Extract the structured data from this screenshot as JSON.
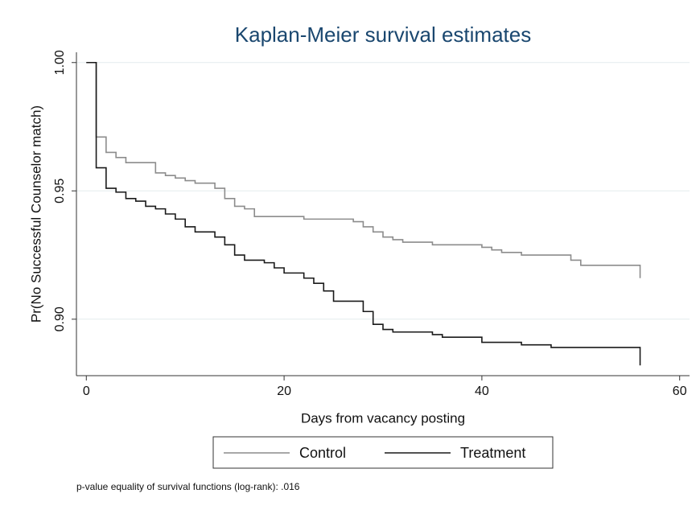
{
  "chart_data": {
    "type": "step",
    "title": "Kaplan-Meier survival estimates",
    "xlabel": "Days from vacancy posting",
    "ylabel": "Pr(No Successful Counselor match)",
    "note": "p-value equality of survival functions (log-rank): .016",
    "xlim": [
      -1,
      61
    ],
    "ylim": [
      0.878,
      1.004
    ],
    "xticks": [
      0,
      20,
      40,
      60
    ],
    "yticks": [
      {
        "value": 0.9,
        "label": "0.90"
      },
      {
        "value": 0.95,
        "label": "0.95"
      },
      {
        "value": 1,
        "label": "1.00"
      }
    ],
    "grid": true,
    "series": [
      {
        "name": "Control",
        "color": "#8c8c8c",
        "x": [
          0,
          1,
          2,
          3,
          4,
          7,
          8,
          9,
          10,
          11,
          13,
          14,
          15,
          16,
          17,
          22,
          27,
          28,
          29,
          30,
          31,
          32,
          35,
          40,
          41,
          42,
          44,
          49,
          50,
          56
        ],
        "values": [
          1.0,
          0.971,
          0.965,
          0.963,
          0.961,
          0.957,
          0.956,
          0.955,
          0.954,
          0.953,
          0.951,
          0.947,
          0.944,
          0.943,
          0.94,
          0.939,
          0.938,
          0.936,
          0.934,
          0.932,
          0.931,
          0.93,
          0.929,
          0.928,
          0.927,
          0.926,
          0.925,
          0.923,
          0.921,
          0.916
        ]
      },
      {
        "name": "Treatment",
        "color": "#1a1a1a",
        "x": [
          0,
          1,
          2,
          3,
          4,
          5,
          6,
          7,
          8,
          9,
          10,
          11,
          13,
          14,
          15,
          16,
          18,
          19,
          20,
          22,
          23,
          24,
          25,
          28,
          29,
          30,
          31,
          35,
          36,
          40,
          44,
          47,
          56
        ],
        "values": [
          1.0,
          0.959,
          0.951,
          0.9495,
          0.947,
          0.946,
          0.944,
          0.943,
          0.941,
          0.939,
          0.936,
          0.934,
          0.932,
          0.929,
          0.925,
          0.923,
          0.922,
          0.92,
          0.918,
          0.916,
          0.914,
          0.911,
          0.907,
          0.903,
          0.898,
          0.896,
          0.895,
          0.894,
          0.893,
          0.891,
          0.89,
          0.889,
          0.882
        ]
      }
    ]
  }
}
